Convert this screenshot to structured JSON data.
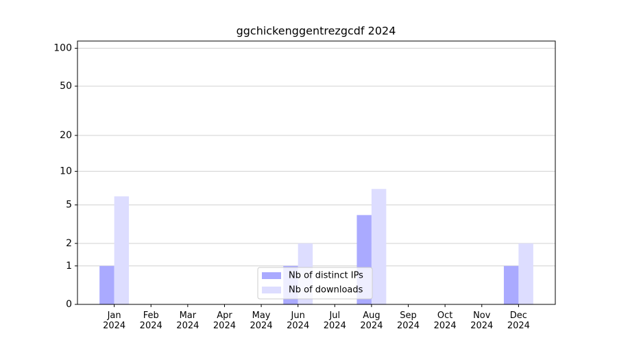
{
  "chart_data": {
    "type": "bar",
    "title": "ggchickenggentrezgcdf 2024",
    "categories": [
      "Jan\n2024",
      "Feb\n2024",
      "Mar\n2024",
      "Apr\n2024",
      "May\n2024",
      "Jun\n2024",
      "Jul\n2024",
      "Aug\n2024",
      "Sep\n2024",
      "Oct\n2024",
      "Nov\n2024",
      "Dec\n2024"
    ],
    "series": [
      {
        "name": "Nb of distinct IPs",
        "color": "#aaaaff",
        "values": [
          1,
          0,
          0,
          0,
          0,
          1,
          0,
          4,
          0,
          0,
          0,
          1
        ]
      },
      {
        "name": "Nb of downloads",
        "color": "#ddddff",
        "values": [
          6,
          0,
          0,
          0,
          0,
          2,
          0,
          7,
          0,
          0,
          0,
          2
        ]
      }
    ],
    "yscale": "log1p",
    "ylim": [
      0,
      114
    ],
    "yticks": [
      0,
      1,
      2,
      5,
      10,
      20,
      50,
      100
    ],
    "grid": true,
    "legend": "lower center"
  }
}
